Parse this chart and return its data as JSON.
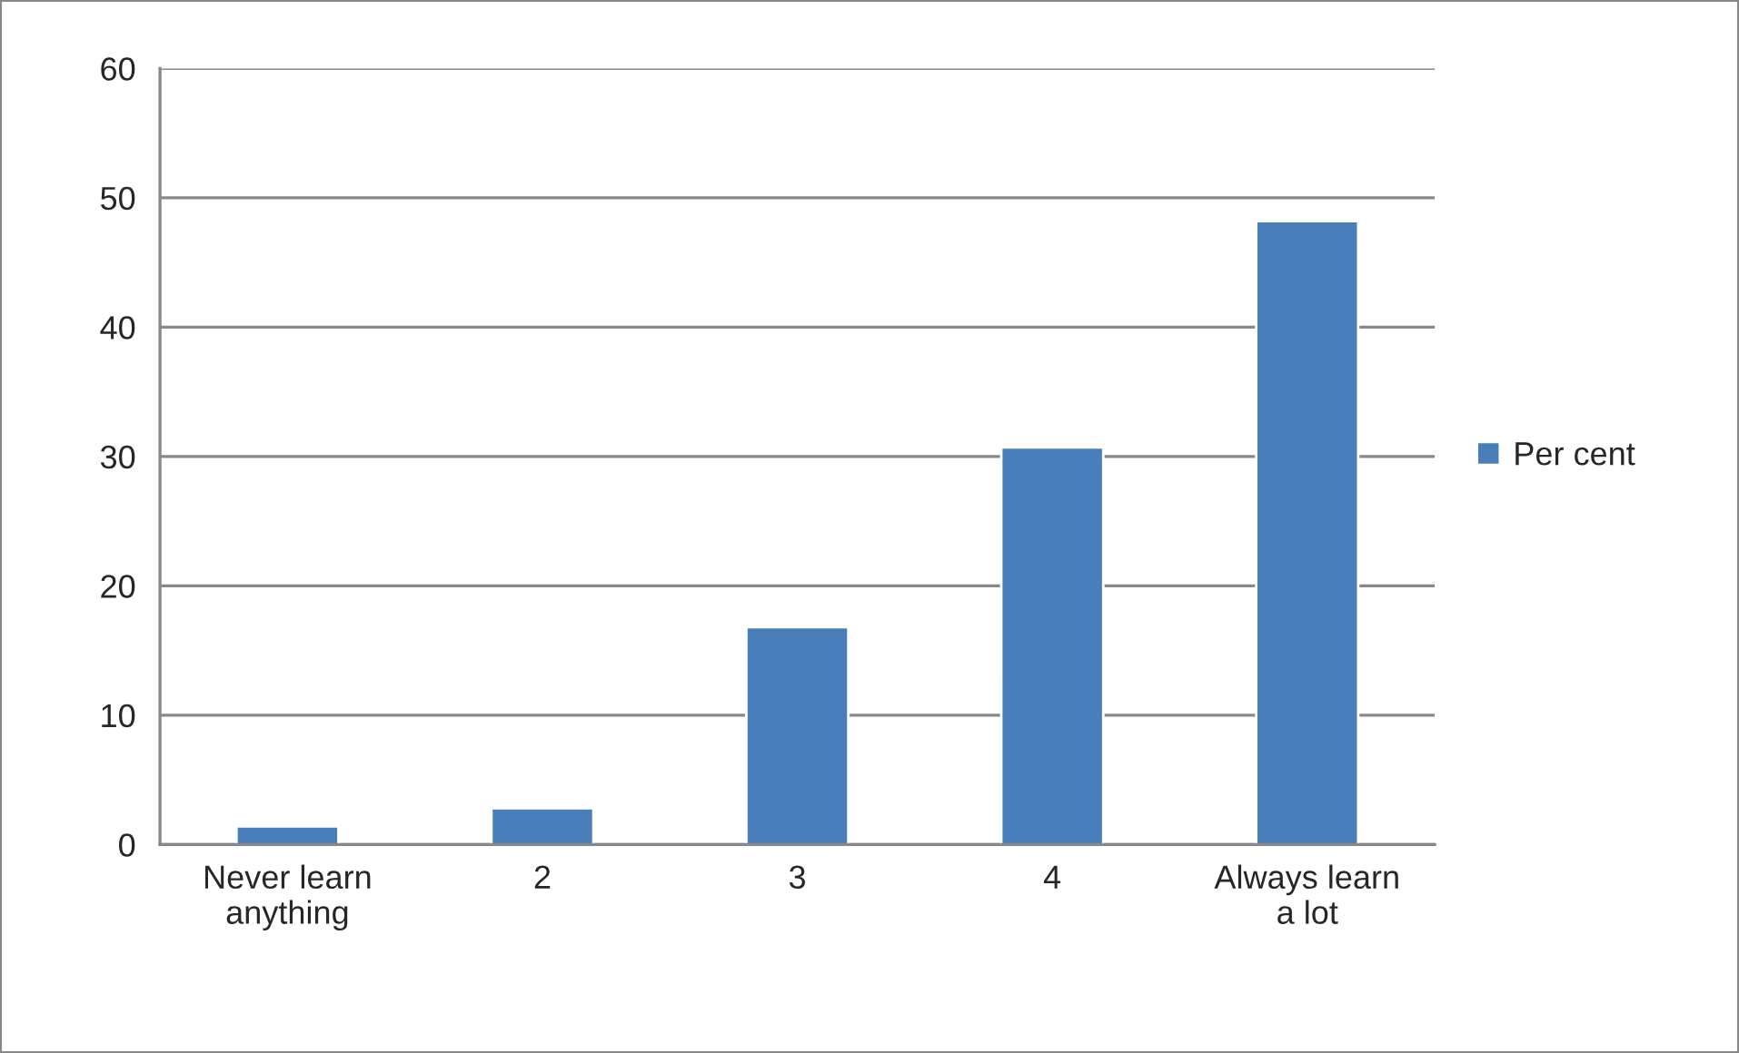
{
  "chart_data": {
    "type": "bar",
    "categories": [
      "Never learn\nanything",
      "2",
      "3",
      "4",
      "Always learn\na lot"
    ],
    "series": [
      {
        "name": "Per cent",
        "color": "#4a7ebb",
        "values": [
          1.4,
          2.8,
          16.8,
          30.7,
          48.2
        ]
      }
    ],
    "ylim": [
      0,
      60
    ],
    "yticks": [
      0,
      10,
      20,
      30,
      40,
      50,
      60
    ],
    "grid": "y",
    "legend": "right"
  }
}
